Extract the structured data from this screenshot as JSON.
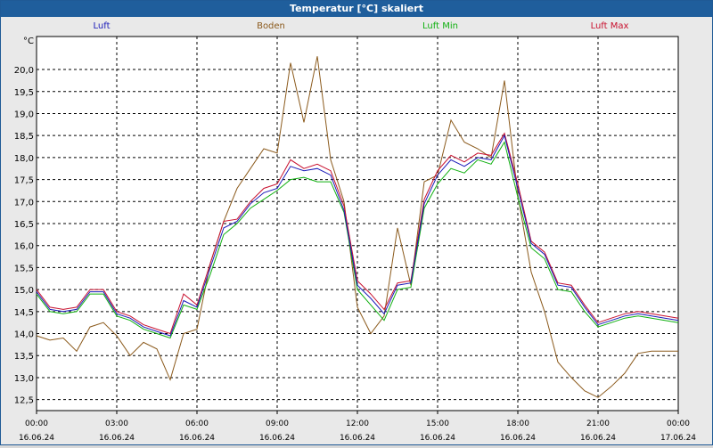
{
  "window": {
    "title": "Temperatur [°C] skaliert"
  },
  "colors": {
    "background": "#e9e9e9",
    "plot_background": "#ffffff",
    "grid": "#000000",
    "Luft": "#1a1ab8",
    "Boden": "#8b5a1c",
    "Luft Min": "#10b010",
    "Luft Max": "#c8102e"
  },
  "chart_data": {
    "type": "line",
    "title": "Temperatur [°C] skaliert",
    "ylabel": "°C",
    "xlabel": "",
    "xlim": [
      0,
      24
    ],
    "ylim": [
      12.25,
      20.75
    ],
    "grid": true,
    "legend": "top",
    "y_ticks": [
      "12,5",
      "13,0",
      "13,5",
      "14,0",
      "14,5",
      "15,0",
      "15,5",
      "16,0",
      "16,5",
      "17,0",
      "17,5",
      "18,0",
      "18,5",
      "19,0",
      "19,5",
      "20,0"
    ],
    "x_ticks": [
      {
        "time": "00:00",
        "date": "16.06.24"
      },
      {
        "time": "03:00",
        "date": "16.06.24"
      },
      {
        "time": "06:00",
        "date": "16.06.24"
      },
      {
        "time": "09:00",
        "date": "16.06.24"
      },
      {
        "time": "12:00",
        "date": "16.06.24"
      },
      {
        "time": "15:00",
        "date": "16.06.24"
      },
      {
        "time": "18:00",
        "date": "16.06.24"
      },
      {
        "time": "21:00",
        "date": "16.06.24"
      },
      {
        "time": "00:00",
        "date": "17.06.24"
      }
    ],
    "x": [
      0,
      0.5,
      1,
      1.5,
      2,
      2.5,
      3,
      3.5,
      4,
      4.5,
      5,
      5.5,
      6,
      6.5,
      7,
      7.5,
      8,
      8.5,
      9,
      9.5,
      10,
      10.5,
      11,
      11.5,
      12,
      12.5,
      13,
      13.5,
      14,
      14.5,
      15,
      15.5,
      16,
      16.5,
      17,
      17.5,
      18,
      18.5,
      19,
      19.5,
      20,
      20.5,
      21,
      21.5,
      22,
      22.5,
      23,
      23.5,
      24
    ],
    "series": [
      {
        "name": "Luft",
        "values": [
          14.95,
          14.55,
          14.5,
          14.55,
          14.95,
          14.95,
          14.45,
          14.35,
          14.15,
          14.05,
          13.95,
          14.75,
          14.6,
          15.5,
          16.4,
          16.55,
          16.95,
          17.2,
          17.3,
          17.8,
          17.7,
          17.75,
          17.6,
          16.8,
          15.1,
          14.8,
          14.45,
          15.1,
          15.15,
          16.95,
          17.6,
          17.95,
          17.8,
          18.0,
          17.95,
          18.5,
          17.3,
          16.05,
          15.8,
          15.1,
          15.05,
          14.6,
          14.2,
          14.3,
          14.4,
          14.45,
          14.4,
          14.35,
          14.3
        ]
      },
      {
        "name": "Boden",
        "values": [
          13.95,
          13.85,
          13.9,
          13.6,
          14.15,
          14.25,
          13.95,
          13.5,
          13.8,
          13.65,
          12.95,
          14.0,
          14.1,
          15.6,
          16.55,
          17.3,
          17.75,
          18.2,
          18.1,
          20.15,
          18.8,
          20.3,
          17.95,
          17.0,
          14.6,
          14.0,
          14.4,
          16.4,
          15.1,
          17.45,
          17.6,
          18.85,
          18.35,
          18.2,
          18.0,
          19.75,
          17.15,
          15.4,
          14.5,
          13.35,
          13.0,
          12.7,
          12.55,
          12.8,
          13.1,
          13.55,
          13.6,
          13.6,
          13.6
        ]
      },
      {
        "name": "Luft Min",
        "values": [
          14.9,
          14.5,
          14.45,
          14.5,
          14.9,
          14.9,
          14.4,
          14.3,
          14.1,
          14.0,
          13.9,
          14.65,
          14.55,
          15.35,
          16.25,
          16.5,
          16.85,
          17.05,
          17.25,
          17.5,
          17.55,
          17.45,
          17.45,
          16.75,
          15.0,
          14.65,
          14.3,
          15.0,
          15.05,
          16.85,
          17.4,
          17.75,
          17.65,
          17.95,
          17.85,
          18.35,
          17.1,
          15.95,
          15.7,
          15.0,
          14.95,
          14.5,
          14.15,
          14.25,
          14.35,
          14.4,
          14.35,
          14.3,
          14.25
        ]
      },
      {
        "name": "Luft Max",
        "values": [
          15.0,
          14.6,
          14.55,
          14.6,
          15.0,
          15.0,
          14.5,
          14.4,
          14.2,
          14.1,
          14.0,
          14.9,
          14.65,
          15.6,
          16.55,
          16.6,
          17.0,
          17.3,
          17.4,
          17.95,
          17.75,
          17.85,
          17.7,
          16.9,
          15.2,
          14.9,
          14.55,
          15.15,
          15.2,
          17.05,
          17.7,
          18.05,
          17.9,
          18.1,
          18.05,
          18.55,
          17.4,
          16.1,
          15.85,
          15.15,
          15.1,
          14.65,
          14.25,
          14.35,
          14.45,
          14.5,
          14.45,
          14.4,
          14.35
        ]
      }
    ]
  }
}
